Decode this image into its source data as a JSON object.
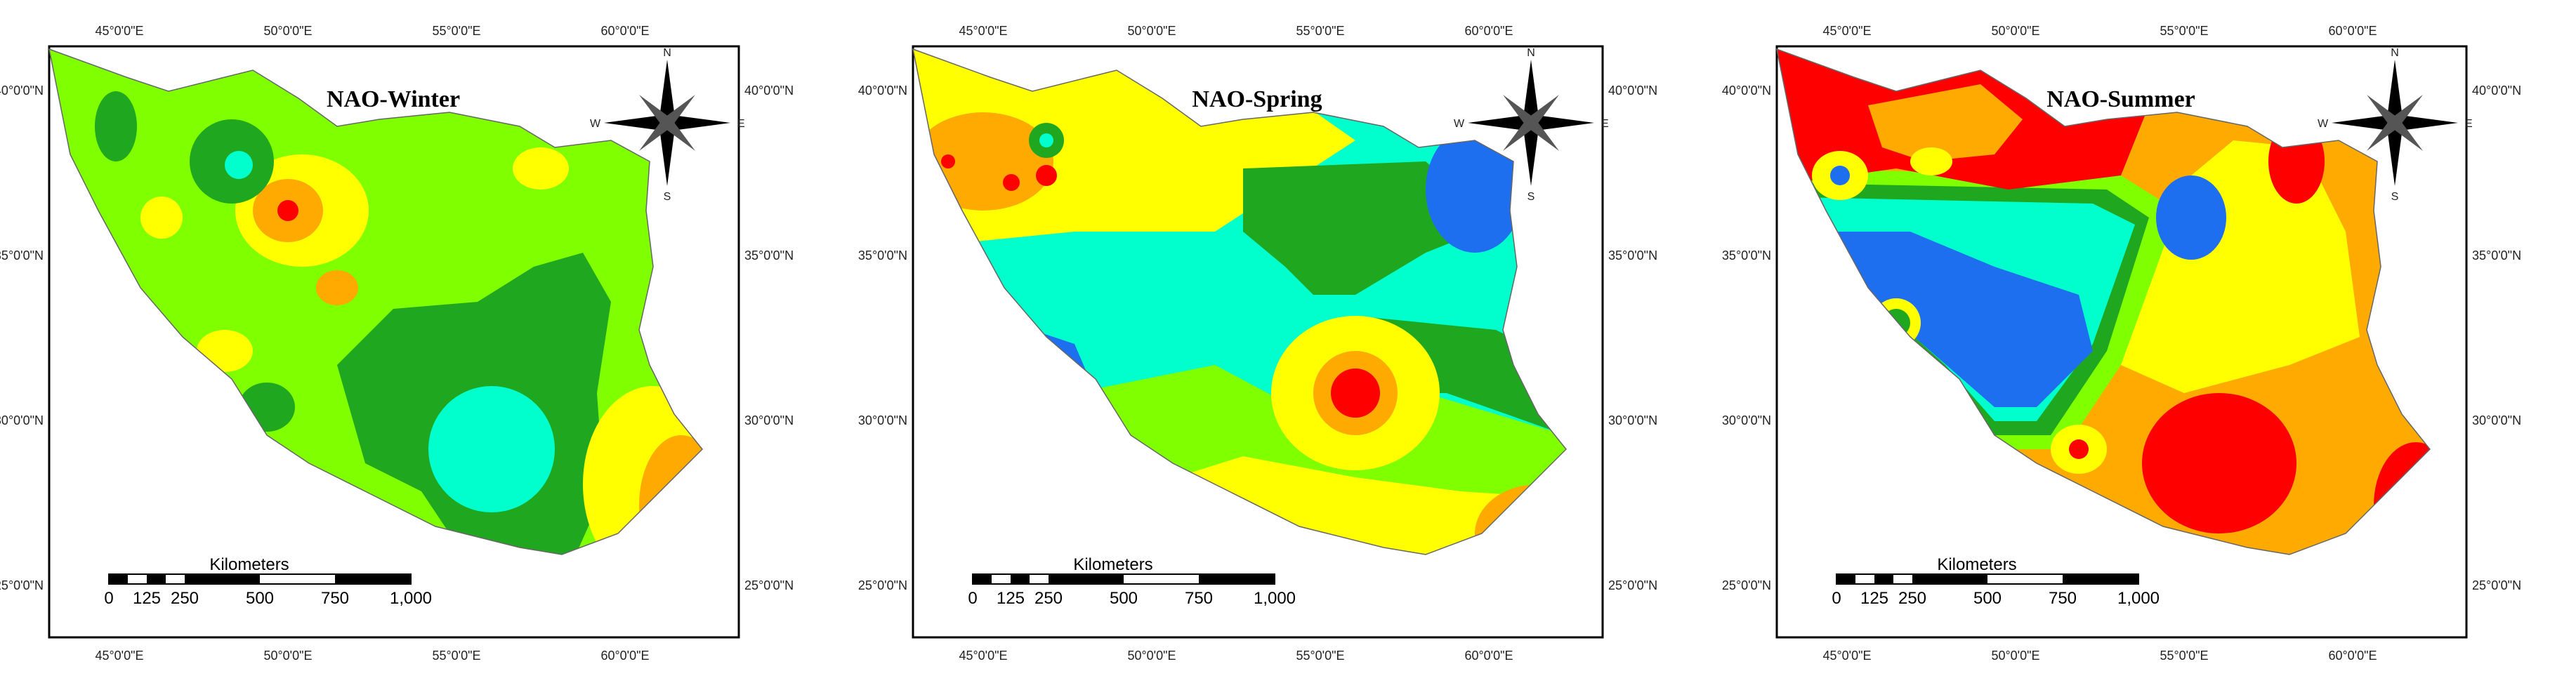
{
  "figure": {
    "colors": {
      "red": "#ff0000",
      "orange": "#ffaa00",
      "yellow": "#ffff00",
      "lightgreen": "#7fff00",
      "green": "#1fa81f",
      "cyan": "#00ffcc",
      "blue": "#1e6ef0",
      "frame": "#000000"
    },
    "x_ticks": [
      "45°0'0\"E",
      "50°0'0\"E",
      "55°0'0\"E",
      "60°0'0\"E"
    ],
    "y_ticks": [
      "40°0'0\"N",
      "35°0'0\"N",
      "30°0'0\"N",
      "25°0'0\"N"
    ],
    "scalebar": {
      "unit": "Kilometers",
      "labels": [
        "0",
        "125",
        "250",
        "500",
        "750",
        "1,000"
      ]
    },
    "compass": {
      "n": "N",
      "s": "S",
      "e": "E",
      "w": "W"
    },
    "panels": [
      {
        "title": "NAO-Winter",
        "base": "lightgreen"
      },
      {
        "title": "NAO-Spring",
        "base": "cyan"
      },
      {
        "title": "NAO-Summer",
        "base": "orange"
      }
    ]
  }
}
